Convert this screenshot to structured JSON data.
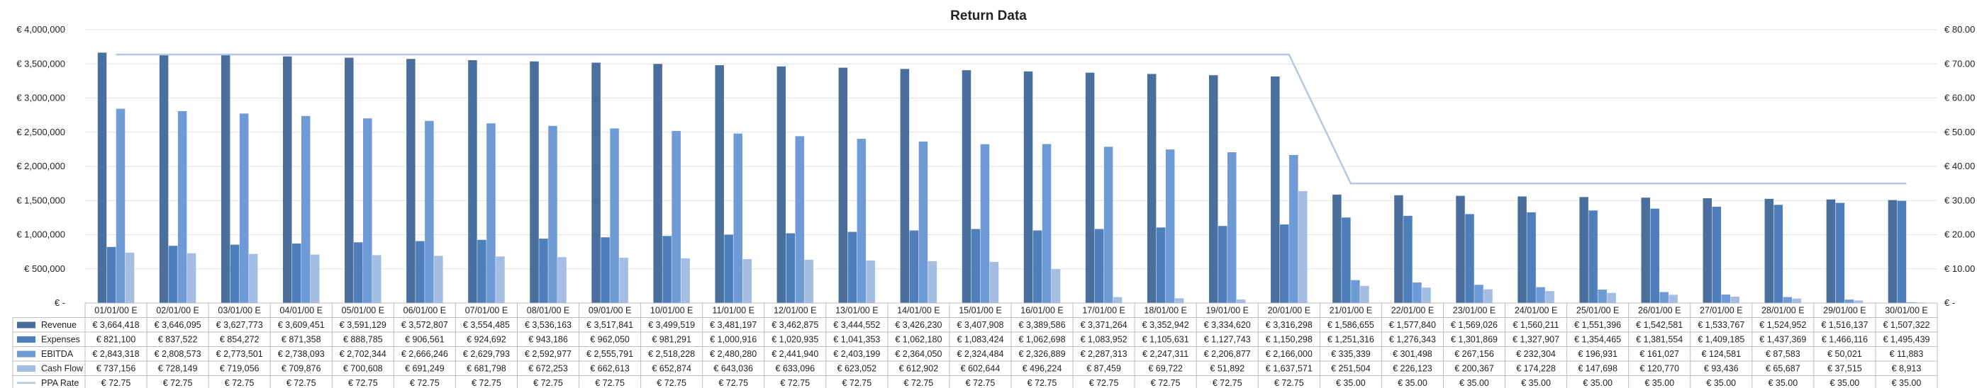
{
  "chart_data": {
    "type": "bar",
    "title": "Return Data",
    "categories": [
      "01/01/00 E",
      "02/01/00 E",
      "03/01/00 E",
      "04/01/00 E",
      "05/01/00 E",
      "06/01/00 E",
      "07/01/00 E",
      "08/01/00 E",
      "09/01/00 E",
      "10/01/00 E",
      "11/01/00 E",
      "12/01/00 E",
      "13/01/00 E",
      "14/01/00 E",
      "15/01/00 E",
      "16/01/00 E",
      "17/01/00 E",
      "18/01/00 E",
      "19/01/00 E",
      "20/01/00 E",
      "21/01/00 E",
      "22/01/00 E",
      "23/01/00 E",
      "24/01/00 E",
      "25/01/00 E",
      "26/01/00 E",
      "27/01/00 E",
      "28/01/00 E",
      "29/01/00 E",
      "30/01/00 E"
    ],
    "y_left": {
      "ylim": [
        0,
        4000000
      ],
      "ticks": [
        "€ -",
        "€ 500,000",
        "€ 1,000,000",
        "€ 1,500,000",
        "€ 2,000,000",
        "€ 2,500,000",
        "€ 3,000,000",
        "€ 3,500,000",
        "€ 4,000,000"
      ]
    },
    "y_right": {
      "ylim": [
        0,
        80
      ],
      "ticks": [
        "€ -",
        "€ 10.00",
        "€ 20.00",
        "€ 30.00",
        "€ 40.00",
        "€ 50.00",
        "€ 60.00",
        "€ 70.00",
        "€ 80.00"
      ]
    },
    "grid": true,
    "legend": "data-table",
    "series": [
      {
        "name": "Revenue",
        "type": "bar",
        "axis": "left",
        "color": "#4a6f9c",
        "values": [
          3664418,
          3646095,
          3627773,
          3609451,
          3591129,
          3572807,
          3554485,
          3536163,
          3517841,
          3499519,
          3481197,
          3462875,
          3444552,
          3426230,
          3407908,
          3389586,
          3371264,
          3352942,
          3334620,
          3316298,
          1586655,
          1577840,
          1569026,
          1560211,
          1551396,
          1542581,
          1533767,
          1524952,
          1516137,
          1507322
        ],
        "labels": [
          "€ 3,664,418",
          "€ 3,646,095",
          "€ 3,627,773",
          "€ 3,609,451",
          "€ 3,591,129",
          "€ 3,572,807",
          "€ 3,554,485",
          "€ 3,536,163",
          "€ 3,517,841",
          "€ 3,499,519",
          "€ 3,481,197",
          "€ 3,462,875",
          "€ 3,444,552",
          "€ 3,426,230",
          "€ 3,407,908",
          "€ 3,389,586",
          "€ 3,371,264",
          "€ 3,352,942",
          "€ 3,334,620",
          "€ 3,316,298",
          "€ 1,586,655",
          "€ 1,577,840",
          "€ 1,569,026",
          "€ 1,560,211",
          "€ 1,551,396",
          "€ 1,542,581",
          "€ 1,533,767",
          "€ 1,524,952",
          "€ 1,516,137",
          "€ 1,507,322"
        ]
      },
      {
        "name": "Expenses",
        "type": "bar",
        "axis": "left",
        "color": "#4f7fba",
        "values": [
          821100,
          837522,
          854272,
          871358,
          888785,
          906561,
          924692,
          943186,
          962050,
          981291,
          1000916,
          1020935,
          1041353,
          1062180,
          1083424,
          1062698,
          1083952,
          1105631,
          1127743,
          1150298,
          1251316,
          1276343,
          1301869,
          1327907,
          1354465,
          1381554,
          1409185,
          1437369,
          1466116,
          1495439
        ],
        "labels": [
          "€ 821,100",
          "€ 837,522",
          "€ 854,272",
          "€ 871,358",
          "€ 888,785",
          "€ 906,561",
          "€ 924,692",
          "€ 943,186",
          "€ 962,050",
          "€ 981,291",
          "€ 1,000,916",
          "€ 1,020,935",
          "€ 1,041,353",
          "€ 1,062,180",
          "€ 1,083,424",
          "€ 1,062,698",
          "€ 1,083,952",
          "€ 1,105,631",
          "€ 1,127,743",
          "€ 1,150,298",
          "€ 1,251,316",
          "€ 1,276,343",
          "€ 1,301,869",
          "€ 1,327,907",
          "€ 1,354,465",
          "€ 1,381,554",
          "€ 1,409,185",
          "€ 1,437,369",
          "€ 1,466,116",
          "€ 1,495,439"
        ]
      },
      {
        "name": "EBITDA",
        "type": "bar",
        "axis": "left",
        "color": "#6e9ad6",
        "values": [
          2843318,
          2808573,
          2773501,
          2738093,
          2702344,
          2666246,
          2629793,
          2592977,
          2555791,
          2518228,
          2480280,
          2441940,
          2403199,
          2364050,
          2324484,
          2326889,
          2287313,
          2247311,
          2206877,
          2166000,
          335339,
          301498,
          267156,
          232304,
          196931,
          161027,
          124581,
          87583,
          50021,
          11883
        ],
        "labels": [
          "€ 2,843,318",
          "€ 2,808,573",
          "€ 2,773,501",
          "€ 2,738,093",
          "€ 2,702,344",
          "€ 2,666,246",
          "€ 2,629,793",
          "€ 2,592,977",
          "€ 2,555,791",
          "€ 2,518,228",
          "€ 2,480,280",
          "€ 2,441,940",
          "€ 2,403,199",
          "€ 2,364,050",
          "€ 2,324,484",
          "€ 2,326,889",
          "€ 2,287,313",
          "€ 2,247,311",
          "€ 2,206,877",
          "€ 2,166,000",
          "€ 335,339",
          "€ 301,498",
          "€ 267,156",
          "€ 232,304",
          "€ 196,931",
          "€ 161,027",
          "€ 124,581",
          "€ 87,583",
          "€ 50,021",
          "€ 11,883"
        ]
      },
      {
        "name": "Cash Flow",
        "type": "bar",
        "axis": "left",
        "color": "#a3bde3",
        "values": [
          737156,
          728149,
          719056,
          709876,
          700608,
          691249,
          681798,
          672253,
          662613,
          652874,
          643036,
          633096,
          623052,
          612902,
          602644,
          496224,
          87459,
          69722,
          51892,
          1637571,
          251504,
          226123,
          200367,
          174228,
          147698,
          120770,
          93436,
          65687,
          37515,
          8913
        ],
        "labels": [
          "€ 737,156",
          "€ 728,149",
          "€ 719,056",
          "€ 709,876",
          "€ 700,608",
          "€ 691,249",
          "€ 681,798",
          "€ 672,253",
          "€ 662,613",
          "€ 652,874",
          "€ 643,036",
          "€ 633,096",
          "€ 623,052",
          "€ 612,902",
          "€ 602,644",
          "€ 496,224",
          "€ 87,459",
          "€ 69,722",
          "€ 51,892",
          "€ 1,637,571",
          "€ 251,504",
          "€ 226,123",
          "€ 200,367",
          "€ 174,228",
          "€ 147,698",
          "€ 120,770",
          "€ 93,436",
          "€ 65,687",
          "€ 37,515",
          "€ 8,913"
        ]
      },
      {
        "name": "PPA Rate",
        "type": "line",
        "axis": "right",
        "color": "#b3c8e6",
        "values": [
          72.75,
          72.75,
          72.75,
          72.75,
          72.75,
          72.75,
          72.75,
          72.75,
          72.75,
          72.75,
          72.75,
          72.75,
          72.75,
          72.75,
          72.75,
          72.75,
          72.75,
          72.75,
          72.75,
          72.75,
          35.0,
          35.0,
          35.0,
          35.0,
          35.0,
          35.0,
          35.0,
          35.0,
          35.0,
          35.0
        ],
        "labels": [
          "€ 72.75",
          "€ 72.75",
          "€ 72.75",
          "€ 72.75",
          "€ 72.75",
          "€ 72.75",
          "€ 72.75",
          "€ 72.75",
          "€ 72.75",
          "€ 72.75",
          "€ 72.75",
          "€ 72.75",
          "€ 72.75",
          "€ 72.75",
          "€ 72.75",
          "€ 72.75",
          "€ 72.75",
          "€ 72.75",
          "€ 72.75",
          "€ 72.75",
          "€ 35.00",
          "€ 35.00",
          "€ 35.00",
          "€ 35.00",
          "€ 35.00",
          "€ 35.00",
          "€ 35.00",
          "€ 35.00",
          "€ 35.00",
          "€ 35.00"
        ]
      }
    ]
  }
}
